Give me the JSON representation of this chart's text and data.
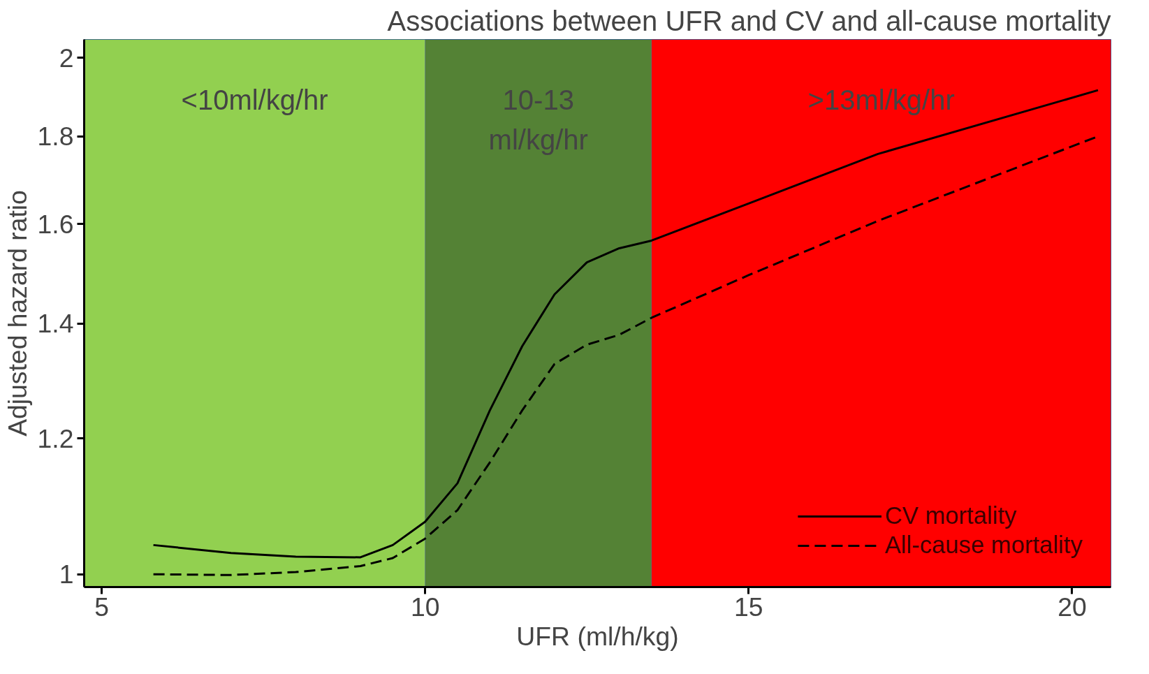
{
  "chart_data": {
    "type": "line",
    "title": "Associations between UFR and CV and all-cause mortality",
    "xlabel": "UFR (ml/h/kg)",
    "ylabel": "Adjusted hazard ratio",
    "log": "y",
    "xlim": [
      4.73,
      20.6
    ],
    "ylim": [
      0.983,
      2.05
    ],
    "xticks": [
      5,
      10,
      15,
      20
    ],
    "yticks": [
      1,
      1.2,
      1.4,
      1.6,
      1.8,
      2
    ],
    "grid": false,
    "legend": "bottom right",
    "bands": [
      {
        "axis": "x",
        "from": 4.73,
        "to": 10,
        "label": "<10ml/kg/hr",
        "color": "#92d050"
      },
      {
        "axis": "x",
        "from": 10,
        "to": 13.5,
        "label": "10-13\nml/kg/hr",
        "color": "#548235"
      },
      {
        "axis": "x",
        "from": 13.5,
        "to": 20.6,
        "label": ">13ml/kg/hr",
        "color": "#ff0000"
      }
    ],
    "x": [
      5.8,
      7,
      8,
      9,
      9.5,
      10,
      10.5,
      11,
      11.5,
      12,
      12.5,
      13,
      13.5,
      15,
      17,
      20.4
    ],
    "series": [
      {
        "name": "CV mortality",
        "color": "#000000",
        "line_style": "solid",
        "values": [
          1.04,
          1.029,
          1.024,
          1.023,
          1.04,
          1.073,
          1.13,
          1.246,
          1.358,
          1.456,
          1.52,
          1.549,
          1.565,
          1.645,
          1.758,
          1.915
        ]
      },
      {
        "name": "All-cause mortality",
        "color": "#000000",
        "line_style": "dashed",
        "values": [
          1.0,
          0.999,
          1.003,
          1.011,
          1.022,
          1.049,
          1.09,
          1.162,
          1.246,
          1.326,
          1.361,
          1.379,
          1.411,
          1.494,
          1.607,
          1.8
        ]
      }
    ]
  }
}
